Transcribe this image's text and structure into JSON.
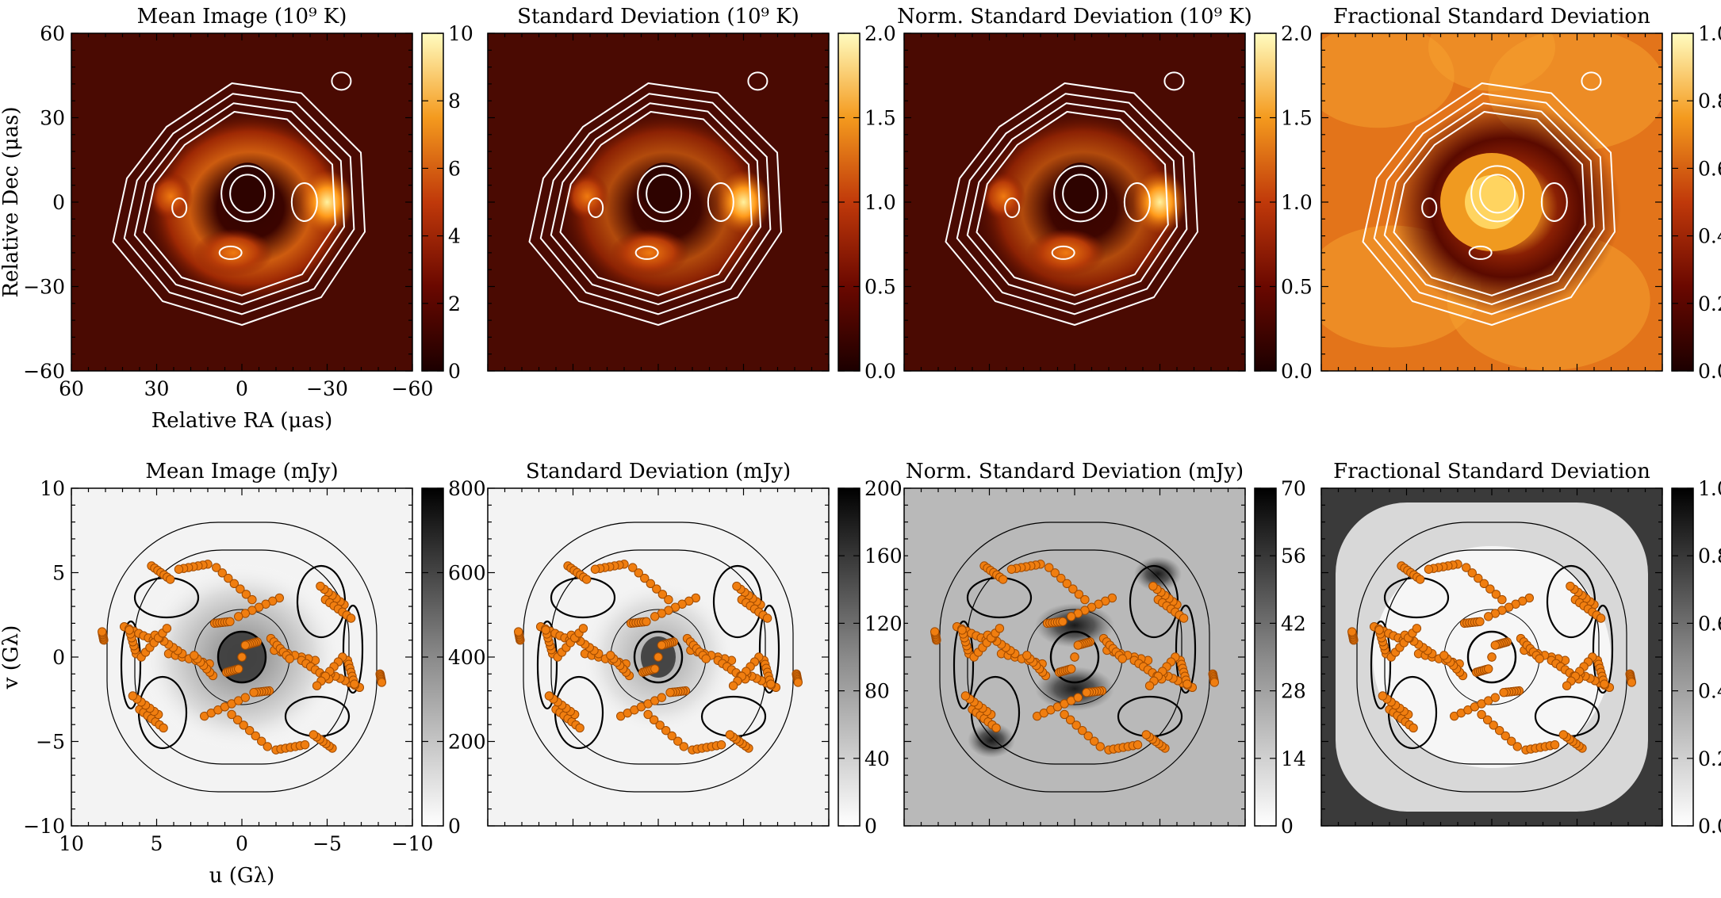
{
  "chart_data": {
    "type": "heatmap",
    "rows": [
      {
        "domain": "image",
        "colormap": "afmhot",
        "x_axis": {
          "label": "Relative RA (μas)",
          "range": [
            60,
            -60
          ],
          "ticks": [
            60,
            30,
            0,
            -30,
            -60
          ]
        },
        "y_axis": {
          "label": "Relative Dec (μas)",
          "range": [
            -60,
            60
          ],
          "ticks": [
            60,
            30,
            0,
            -30,
            -60
          ]
        },
        "panels": [
          {
            "title": "Mean Image (10⁹ K)",
            "colorbar": {
              "range": [
                0,
                10
              ],
              "ticks": [
                10,
                8,
                6,
                4,
                2,
                0
              ]
            }
          },
          {
            "title": "Standard Deviation (10⁹ K)",
            "colorbar": {
              "range": [
                0,
                2
              ],
              "ticks": [
                2.0,
                1.5,
                1.0,
                0.5,
                0.0
              ]
            }
          },
          {
            "title": "Norm. Standard Deviation (10⁹ K)",
            "colorbar": {
              "range": [
                0,
                2
              ],
              "ticks": [
                2.0,
                1.5,
                1.0,
                0.5,
                0.0
              ]
            }
          },
          {
            "title": "Fractional Standard Deviation",
            "colorbar": {
              "range": [
                0,
                1
              ],
              "ticks": [
                1.0,
                0.8,
                0.6,
                0.4,
                0.2,
                0.0
              ]
            }
          }
        ]
      },
      {
        "domain": "visibility",
        "colormap": "gray_r",
        "x_axis": {
          "label": "u (Gλ)",
          "range": [
            10,
            -10
          ],
          "ticks": [
            10,
            5,
            0,
            -5,
            -10
          ]
        },
        "y_axis": {
          "label": "v (Gλ)",
          "range": [
            -10,
            10
          ],
          "ticks": [
            10,
            5,
            0,
            -5,
            -10
          ]
        },
        "panels": [
          {
            "title": "Mean Image (mJy)",
            "colorbar": {
              "range": [
                0,
                800
              ],
              "ticks": [
                800,
                600,
                400,
                200,
                0
              ]
            }
          },
          {
            "title": "Standard Deviation (mJy)",
            "colorbar": {
              "range": [
                0,
                200
              ],
              "ticks": [
                200,
                160,
                120,
                80,
                40,
                0
              ]
            }
          },
          {
            "title": "Norm. Standard Deviation (mJy)",
            "colorbar": {
              "range": [
                0,
                70
              ],
              "ticks": [
                70,
                56,
                42,
                28,
                14,
                0
              ]
            }
          },
          {
            "title": "Fractional Standard Deviation",
            "colorbar": {
              "range": [
                0,
                1
              ],
              "ticks": [
                1.0,
                0.8,
                0.6,
                0.4,
                0.2,
                0.0
              ]
            }
          }
        ]
      }
    ],
    "uv_tracks": [
      {
        "u": [
          5.3,
          4.2
        ],
        "v": [
          5.4,
          4.6
        ]
      },
      {
        "u": [
          1.5,
          -0.6
        ],
        "v": [
          5.3,
          3.4
        ]
      },
      {
        "u": [
          6.9,
          5.2
        ],
        "v": [
          1.8,
          1.0
        ]
      },
      {
        "u": [
          6.2,
          6.6
        ],
        "v": [
          0.2,
          1.6
        ]
      },
      {
        "u": [
          4.3,
          1.9
        ],
        "v": [
          0.2,
          -0.4
        ]
      },
      {
        "u": [
          2.2,
          -0.2
        ],
        "v": [
          -3.5,
          -2.4
        ]
      },
      {
        "u": [
          6.0,
          4.6
        ],
        "v": [
          -3.1,
          -4.2
        ]
      },
      {
        "u": [
          -1.7,
          -2.8
        ],
        "v": [
          1.1,
          -0.1
        ]
      },
      {
        "u": [
          -3.5,
          -5.1
        ],
        "v": [
          -0.2,
          -1.3
        ]
      },
      {
        "u": [
          -5.9,
          -4.4
        ],
        "v": [
          0.0,
          -1.7
        ]
      },
      {
        "u": [
          -4.9,
          -6.4
        ],
        "v": [
          3.4,
          2.3
        ]
      },
      {
        "u": [
          -2.0,
          -3.7
        ],
        "v": [
          -5.5,
          -5.2
        ]
      },
      {
        "u": [
          8.1,
          8.2
        ],
        "v": [
          1.0,
          1.5
        ]
      },
      {
        "u": [
          1.6,
          0.7
        ],
        "v": [
          2.0,
          2.1
        ]
      },
      {
        "u": [
          0.9,
          0.2
        ],
        "v": [
          -0.9,
          -0.7
        ]
      },
      {
        "u": [
          0,
          0
        ],
        "v": [
          0,
          0
        ]
      }
    ]
  }
}
